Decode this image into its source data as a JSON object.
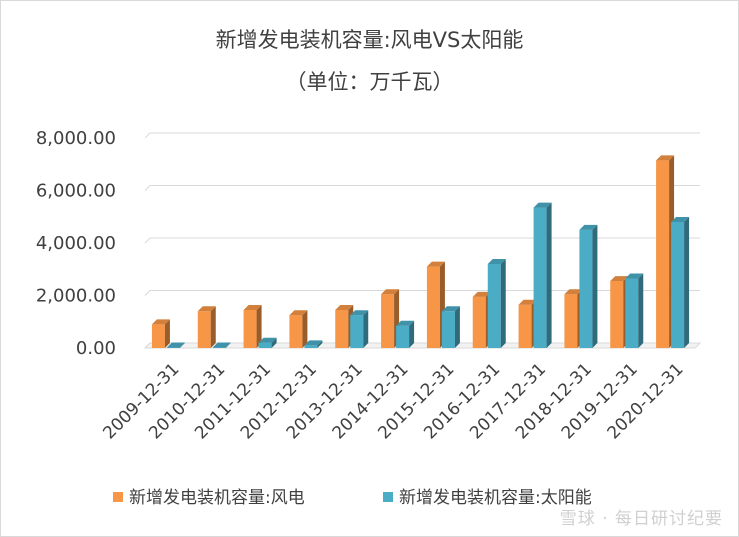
{
  "chart_data": {
    "type": "bar",
    "title": "新增发电装机容量:风电VS太阳能",
    "subtitle": "（单位：万千瓦）",
    "categories": [
      "2009-12-31",
      "2010-12-31",
      "2011-12-31",
      "2012-12-31",
      "2013-12-31",
      "2014-12-31",
      "2015-12-31",
      "2016-12-31",
      "2017-12-31",
      "2018-12-31",
      "2019-12-31",
      "2020-12-31"
    ],
    "series": [
      {
        "name": "新增发电装机容量:风电",
        "color": "#f79646",
        "values": [
          900,
          1400,
          1450,
          1250,
          1450,
          2050,
          3100,
          1950,
          1650,
          2050,
          2550,
          7150
        ]
      },
      {
        "name": "新增发电装机容量:太阳能",
        "color": "#4bacc6",
        "values": [
          20,
          20,
          200,
          100,
          1250,
          850,
          1400,
          3200,
          5350,
          4500,
          2650,
          4800
        ]
      }
    ],
    "yticks": [
      "0.00",
      "2,000.00",
      "4,000.00",
      "6,000.00",
      "8,000.00"
    ],
    "ylim": [
      0,
      8000
    ],
    "grid": true,
    "legend": "bottom"
  },
  "watermark": "雪球 · 每日研讨纪要"
}
